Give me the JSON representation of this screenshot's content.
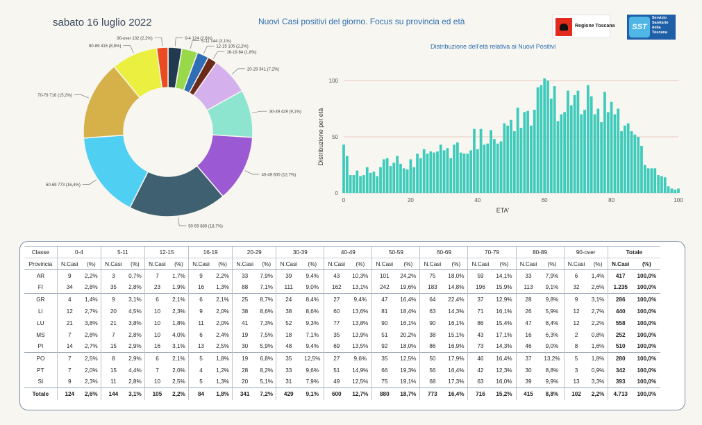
{
  "header": {
    "date": "sabato 16 luglio 2022",
    "title": "Nuovi Casi positivi del giorno. Focus su provincia ed età",
    "logo_regione": "Regione Toscana",
    "logo_sst_mark": "SST",
    "logo_sst_text": [
      "Servizio",
      "Sanitario",
      "della",
      "Toscana"
    ]
  },
  "chart_data": [
    {
      "type": "pie",
      "donut": true,
      "title": "",
      "slices": [
        {
          "label": "0-4 124 (2,6%)",
          "value": 124,
          "color": "#213a4f"
        },
        {
          "label": "5-11 144 (3,1%)",
          "value": 144,
          "color": "#9ad84b"
        },
        {
          "label": "12-15 105 (2,2%)",
          "value": 105,
          "color": "#2f6db5"
        },
        {
          "label": "16-19 84 (1,8%)",
          "value": 84,
          "color": "#6b2a1a"
        },
        {
          "label": "20-29 341 (7,2%)",
          "value": 341,
          "color": "#d4b1ec"
        },
        {
          "label": "30-39 429 (9,1%)",
          "value": 429,
          "color": "#8de5cf"
        },
        {
          "label": "40-49 600 (12,7%)",
          "value": 600,
          "color": "#9b59d4"
        },
        {
          "label": "50-59 880 (18,7%)",
          "value": 880,
          "color": "#3f6070"
        },
        {
          "label": "60-69 773 (16,4%)",
          "value": 773,
          "color": "#4fd0f2"
        },
        {
          "label": "70-79 716 (15,2%)",
          "value": 716,
          "color": "#d6b149"
        },
        {
          "label": "80-89 415 (8,8%)",
          "value": 415,
          "color": "#ebef3f"
        },
        {
          "label": "90-over 102 (2,2%)",
          "value": 102,
          "color": "#ea4b1f"
        }
      ]
    },
    {
      "type": "bar",
      "title": "Distribuzione dell'età relativa ai Nuovi Positivi",
      "xlabel": "ETA'",
      "ylabel": "Distribuzione per età",
      "xlim": [
        0,
        100
      ],
      "ylim": [
        0,
        100
      ],
      "xticks": [
        "0",
        "20",
        "40",
        "60",
        "80",
        "100"
      ],
      "yticks": [
        "0",
        "50",
        "100"
      ],
      "grid": true,
      "color": "#3fcbbb",
      "x": [
        0,
        1,
        2,
        3,
        4,
        5,
        6,
        7,
        8,
        9,
        10,
        11,
        12,
        13,
        14,
        15,
        16,
        17,
        18,
        19,
        20,
        21,
        22,
        23,
        24,
        25,
        26,
        27,
        28,
        29,
        30,
        31,
        32,
        33,
        34,
        35,
        36,
        37,
        38,
        39,
        40,
        41,
        42,
        43,
        44,
        45,
        46,
        47,
        48,
        49,
        50,
        51,
        52,
        53,
        54,
        55,
        56,
        57,
        58,
        59,
        60,
        61,
        62,
        63,
        64,
        65,
        66,
        67,
        68,
        69,
        70,
        71,
        72,
        73,
        74,
        75,
        76,
        77,
        78,
        79,
        80,
        81,
        82,
        83,
        84,
        85,
        86,
        87,
        88,
        89,
        90,
        91,
        92,
        93,
        94,
        95,
        96,
        97,
        98,
        99,
        100
      ],
      "values": [
        43,
        33,
        16,
        16,
        20,
        15,
        16,
        23,
        18,
        19,
        15,
        23,
        30,
        31,
        24,
        27,
        33,
        26,
        22,
        21,
        30,
        23,
        35,
        31,
        39,
        35,
        37,
        36,
        37,
        43,
        38,
        40,
        31,
        43,
        45,
        36,
        35,
        35,
        38,
        57,
        39,
        57,
        43,
        44,
        56,
        48,
        44,
        46,
        62,
        60,
        65,
        55,
        76,
        58,
        72,
        73,
        60,
        74,
        94,
        96,
        102,
        100,
        84,
        95,
        64,
        70,
        72,
        91,
        78,
        87,
        91,
        70,
        74,
        96,
        86,
        70,
        75,
        63,
        90,
        72,
        81,
        70,
        75,
        55,
        60,
        62,
        55,
        52,
        50,
        42,
        25,
        22,
        22,
        22,
        16,
        15,
        14,
        6,
        4,
        3,
        4
      ]
    }
  ],
  "table": {
    "header_row1": [
      "Classe",
      "0-4",
      "5-11",
      "12-15",
      "16-19",
      "20-29",
      "30-39",
      "40-49",
      "50-59",
      "60-69",
      "70-79",
      "80-89",
      "90-over",
      "Totale"
    ],
    "header_row2_first": "Provincia",
    "header_row2_pair": [
      "N.Casi",
      "(%)"
    ],
    "rows": [
      {
        "prov": "AR",
        "cells": [
          "9",
          "2,2%",
          "3",
          "0,7%",
          "7",
          "1,7%",
          "9",
          "2,2%",
          "33",
          "7,9%",
          "39",
          "9,4%",
          "43",
          "10,3%",
          "101",
          "24,2%",
          "75",
          "18,0%",
          "59",
          "14,1%",
          "33",
          "7,9%",
          "6",
          "1,4%",
          "417",
          "100,0%"
        ]
      },
      {
        "prov": "FI",
        "cells": [
          "34",
          "2,8%",
          "35",
          "2,8%",
          "23",
          "1,9%",
          "16",
          "1,3%",
          "88",
          "7,1%",
          "111",
          "9,0%",
          "162",
          "13,1%",
          "242",
          "19,6%",
          "183",
          "14,8%",
          "196",
          "15,9%",
          "113",
          "9,1%",
          "32",
          "2,6%",
          "1.235",
          "100,0%"
        ]
      },
      {
        "prov": "GR",
        "cells": [
          "4",
          "1,4%",
          "9",
          "3,1%",
          "6",
          "2,1%",
          "6",
          "2,1%",
          "25",
          "8,7%",
          "24",
          "8,4%",
          "27",
          "9,4%",
          "47",
          "16,4%",
          "64",
          "22,4%",
          "37",
          "12,9%",
          "28",
          "9,8%",
          "9",
          "3,1%",
          "286",
          "100,0%"
        ]
      },
      {
        "prov": "LI",
        "cells": [
          "12",
          "2,7%",
          "20",
          "4,5%",
          "10",
          "2,3%",
          "9",
          "2,0%",
          "38",
          "8,6%",
          "38",
          "8,6%",
          "60",
          "13,6%",
          "81",
          "18,4%",
          "63",
          "14,3%",
          "71",
          "16,1%",
          "26",
          "5,9%",
          "12",
          "2,7%",
          "440",
          "100,0%"
        ]
      },
      {
        "prov": "LU",
        "cells": [
          "21",
          "3,8%",
          "21",
          "3,8%",
          "10",
          "1,8%",
          "11",
          "2,0%",
          "41",
          "7,3%",
          "52",
          "9,3%",
          "77",
          "13,8%",
          "90",
          "16,1%",
          "90",
          "16,1%",
          "86",
          "15,4%",
          "47",
          "8,4%",
          "12",
          "2,2%",
          "558",
          "100,0%"
        ]
      },
      {
        "prov": "MS",
        "cells": [
          "7",
          "2,8%",
          "7",
          "2,8%",
          "10",
          "4,0%",
          "6",
          "2,4%",
          "19",
          "7,5%",
          "18",
          "7,1%",
          "35",
          "13,9%",
          "51",
          "20,2%",
          "38",
          "15,1%",
          "43",
          "17,1%",
          "16",
          "6,3%",
          "2",
          "0,8%",
          "252",
          "100,0%"
        ]
      },
      {
        "prov": "PI",
        "cells": [
          "14",
          "2,7%",
          "15",
          "2,9%",
          "16",
          "3,1%",
          "13",
          "2,5%",
          "30",
          "5,9%",
          "48",
          "9,4%",
          "69",
          "13,5%",
          "92",
          "18,0%",
          "86",
          "16,9%",
          "73",
          "14,3%",
          "46",
          "9,0%",
          "8",
          "1,6%",
          "510",
          "100,0%"
        ]
      },
      {
        "prov": "PO",
        "cells": [
          "7",
          "2,5%",
          "8",
          "2,9%",
          "6",
          "2,1%",
          "5",
          "1,8%",
          "19",
          "6,8%",
          "35",
          "12,5%",
          "27",
          "9,6%",
          "35",
          "12,5%",
          "50",
          "17,9%",
          "46",
          "16,4%",
          "37",
          "13,2%",
          "5",
          "1,8%",
          "280",
          "100,0%"
        ]
      },
      {
        "prov": "PT",
        "cells": [
          "7",
          "2,0%",
          "15",
          "4,4%",
          "7",
          "2,0%",
          "4",
          "1,2%",
          "28",
          "8,2%",
          "33",
          "9,6%",
          "51",
          "14,9%",
          "66",
          "19,3%",
          "56",
          "16,4%",
          "42",
          "12,3%",
          "30",
          "8,8%",
          "3",
          "0,9%",
          "342",
          "100,0%"
        ]
      },
      {
        "prov": "SI",
        "cells": [
          "9",
          "2,3%",
          "11",
          "2,8%",
          "10",
          "2,5%",
          "5",
          "1,3%",
          "20",
          "5,1%",
          "31",
          "7,9%",
          "49",
          "12,5%",
          "75",
          "19,1%",
          "68",
          "17,3%",
          "63",
          "16,0%",
          "39",
          "9,9%",
          "13",
          "3,3%",
          "393",
          "100,0%"
        ]
      }
    ],
    "total": {
      "prov": "Totale",
      "cells": [
        "124",
        "2,6%",
        "144",
        "3,1%",
        "105",
        "2,2%",
        "84",
        "1,8%",
        "341",
        "7,2%",
        "429",
        "9,1%",
        "600",
        "12,7%",
        "880",
        "18,7%",
        "773",
        "16,4%",
        "716",
        "15,2%",
        "415",
        "8,8%",
        "102",
        "2,2%",
        "4.713",
        "100,0%"
      ]
    }
  }
}
